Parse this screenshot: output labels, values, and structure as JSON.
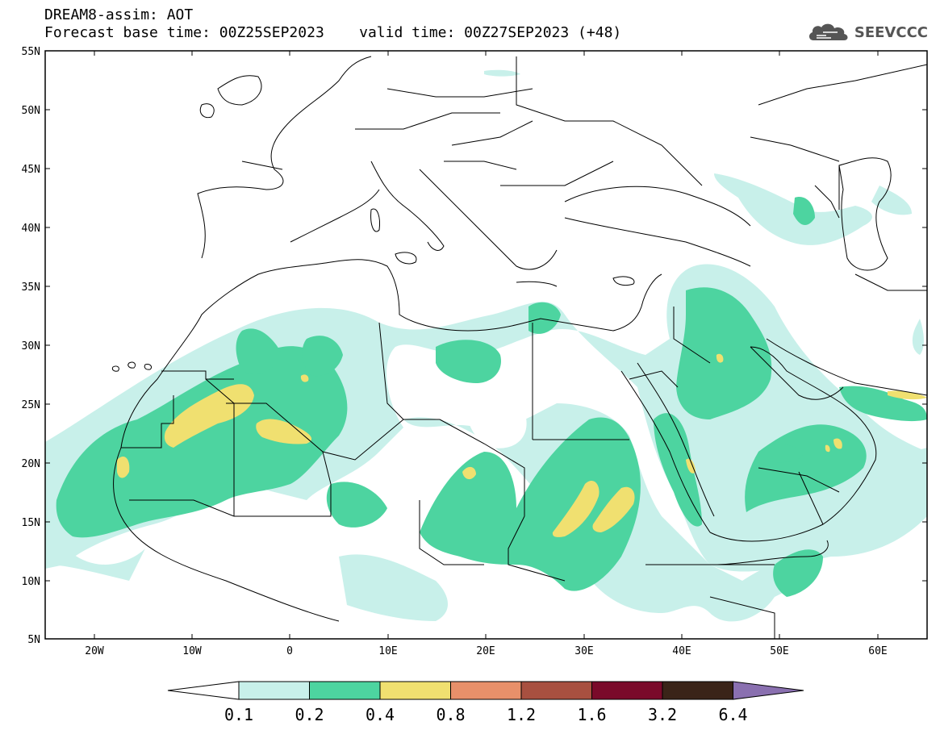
{
  "header": {
    "line1": "DREAM8-assim: AOT",
    "line2": "Forecast base time: 00Z25SEP2023    valid time: 00Z27SEP2023 (+48)"
  },
  "logo": {
    "text": "SEEVCCC",
    "icon": "cloud-logo-icon"
  },
  "map": {
    "lon_range": [
      -25,
      65
    ],
    "lat_range": [
      5,
      55
    ],
    "lat_ticks": [
      "55N",
      "50N",
      "45N",
      "40N",
      "35N",
      "30N",
      "25N",
      "20N",
      "15N",
      "10N",
      "5N"
    ],
    "lon_ticks": [
      "20W",
      "10W",
      "0",
      "10E",
      "20E",
      "30E",
      "40E",
      "50E",
      "60E"
    ]
  },
  "colorbar": {
    "labels": [
      "0.1",
      "0.2",
      "0.4",
      "0.8",
      "1.2",
      "1.6",
      "3.2",
      "6.4"
    ],
    "colors": [
      "#c8f0ea",
      "#4dd4a0",
      "#f0e070",
      "#e8906a",
      "#a85040",
      "#7a0a2a",
      "#3a2418",
      "#8a70b0"
    ],
    "lower_extension_color": "#ffffff"
  }
}
